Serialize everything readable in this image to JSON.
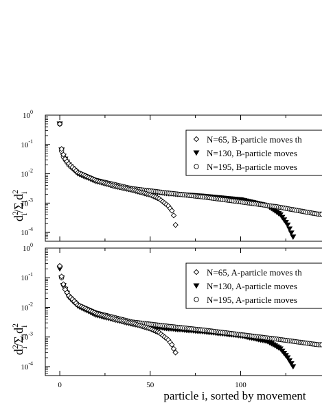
{
  "chart_data": [
    {
      "type": "scatter",
      "title": "",
      "ylabel": "d_i^2/Σ_i d_i^2",
      "xlabel": "",
      "yscale": "log",
      "ylim": [
        5e-05,
        1
      ],
      "xlim": [
        -8,
        145
      ],
      "grid": false,
      "legend_position": "top-right",
      "series": [
        {
          "name": "N=65, B-particle moves th",
          "marker": "diamond-open",
          "n": 65,
          "tail": 0.00018,
          "points": [
            [
              0,
              0.5
            ],
            [
              1,
              0.07
            ],
            [
              2,
              0.045
            ],
            [
              3,
              0.032
            ],
            [
              5,
              0.022
            ],
            [
              10,
              0.011
            ],
            [
              20,
              0.0058
            ],
            [
              30,
              0.0038
            ],
            [
              40,
              0.0028
            ],
            [
              50,
              0.0019
            ],
            [
              55,
              0.0014
            ],
            [
              60,
              0.0008
            ],
            [
              62,
              0.00055
            ],
            [
              63,
              0.00038
            ],
            [
              64,
              0.00018
            ]
          ]
        },
        {
          "name": "N=130, B-particle moves",
          "marker": "triangle-down-filled",
          "n": 130,
          "tail": 7e-05,
          "points": [
            [
              0,
              0.5
            ],
            [
              1,
              0.065
            ],
            [
              2,
              0.04
            ],
            [
              5,
              0.02
            ],
            [
              10,
              0.01
            ],
            [
              20,
              0.0055
            ],
            [
              40,
              0.0028
            ],
            [
              60,
              0.0021
            ],
            [
              80,
              0.0017
            ],
            [
              100,
              0.0013
            ],
            [
              115,
              0.0008
            ],
            [
              122,
              0.0004
            ],
            [
              126,
              0.00018
            ],
            [
              129,
              7e-05
            ]
          ]
        },
        {
          "name": "N=195, B-particle moves",
          "marker": "circle-open",
          "n": 195,
          "tail": 0.00042,
          "points": [
            [
              0,
              0.5
            ],
            [
              1,
              0.06
            ],
            [
              2,
              0.038
            ],
            [
              5,
              0.02
            ],
            [
              10,
              0.011
            ],
            [
              20,
              0.006
            ],
            [
              40,
              0.0031
            ],
            [
              60,
              0.0022
            ],
            [
              80,
              0.0016
            ],
            [
              100,
              0.0011
            ],
            [
              120,
              0.00075
            ],
            [
              140,
              0.00045
            ],
            [
              143,
              0.00042
            ]
          ]
        }
      ]
    },
    {
      "type": "scatter",
      "title": "",
      "ylabel": "d_i^2/Σ_i d_i^2",
      "xlabel": "particle i, sorted by movement",
      "yscale": "log",
      "ylim": [
        5e-05,
        1
      ],
      "xlim": [
        -8,
        145
      ],
      "x_ticks": [
        0,
        50,
        100
      ],
      "grid": false,
      "legend_position": "top-right",
      "series": [
        {
          "name": "N=65, A-particle moves th",
          "marker": "diamond-open",
          "n": 65,
          "tail": 0.0003,
          "points": [
            [
              0,
              0.25
            ],
            [
              1,
              0.11
            ],
            [
              2,
              0.06
            ],
            [
              3,
              0.04
            ],
            [
              5,
              0.025
            ],
            [
              10,
              0.012
            ],
            [
              20,
              0.0062
            ],
            [
              30,
              0.004
            ],
            [
              40,
              0.0029
            ],
            [
              50,
              0.0019
            ],
            [
              55,
              0.0014
            ],
            [
              60,
              0.0008
            ],
            [
              62,
              0.00055
            ],
            [
              63,
              0.0004
            ],
            [
              64,
              0.0003
            ]
          ]
        },
        {
          "name": "N=130, A-particle moves",
          "marker": "triangle-down-filled",
          "n": 130,
          "tail": 0.0001,
          "points": [
            [
              0,
              0.2
            ],
            [
              1,
              0.1
            ],
            [
              2,
              0.055
            ],
            [
              5,
              0.022
            ],
            [
              10,
              0.011
            ],
            [
              20,
              0.0055
            ],
            [
              40,
              0.0027
            ],
            [
              60,
              0.0019
            ],
            [
              80,
              0.0015
            ],
            [
              100,
              0.0011
            ],
            [
              115,
              0.0007
            ],
            [
              122,
              0.0004
            ],
            [
              126,
              0.0002
            ],
            [
              129,
              0.0001
            ]
          ]
        },
        {
          "name": "N=195, A-particle moves",
          "marker": "circle-open",
          "n": 195,
          "tail": 0.00055,
          "points": [
            [
              0,
              0.24
            ],
            [
              1,
              0.1
            ],
            [
              2,
              0.058
            ],
            [
              5,
              0.024
            ],
            [
              10,
              0.012
            ],
            [
              20,
              0.0065
            ],
            [
              40,
              0.0032
            ],
            [
              60,
              0.0023
            ],
            [
              80,
              0.0017
            ],
            [
              100,
              0.0012
            ],
            [
              120,
              0.00085
            ],
            [
              140,
              0.00058
            ],
            [
              143,
              0.00055
            ]
          ]
        }
      ]
    }
  ],
  "axis_labels": {
    "y_top": "d_i^2/Σ_i d_i^2",
    "y_bottom": "d_i^2/Σ_i d_i^2",
    "x": "particle i, sorted by movement"
  }
}
